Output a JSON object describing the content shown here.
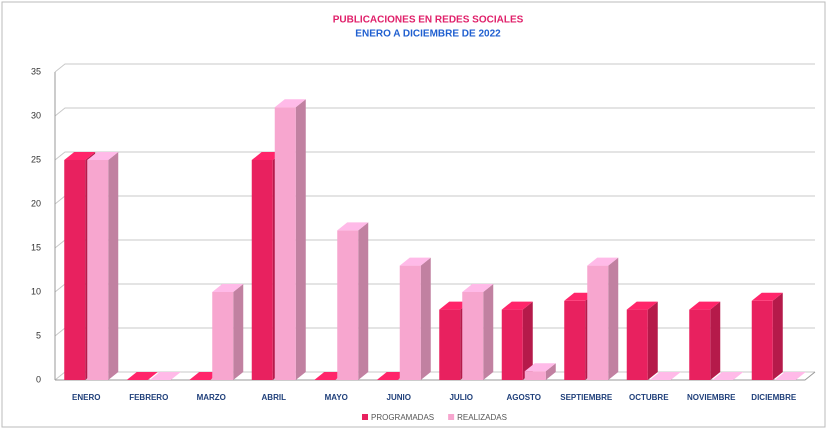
{
  "chart_data": {
    "type": "bar3d",
    "title": "PUBLICACIONES EN REDES SOCIALES",
    "subtitle": "ENERO A DICIEMBRE DE 2022",
    "categories": [
      "ENERO",
      "FEBRERO",
      "MARZO",
      "ABRIL",
      "MAYO",
      "JUNIO",
      "JULIO",
      "AGOSTO",
      "SEPTIEMBRE",
      "OCTUBRE",
      "NOVIEMBRE",
      "DICIEMBRE"
    ],
    "series": [
      {
        "name": "PROGRAMADAS",
        "color": "#e8215f",
        "values": [
          25,
          0,
          0,
          25,
          0,
          0,
          8,
          8,
          9,
          8,
          8,
          9
        ]
      },
      {
        "name": "REALIZADAS",
        "color": "#f7a6cf",
        "values": [
          25,
          0,
          10,
          31,
          17,
          13,
          10,
          1,
          13,
          0,
          0,
          0
        ]
      }
    ],
    "ylim": [
      0,
      35
    ],
    "yticks": [
      0,
      5,
      10,
      15,
      20,
      25,
      30,
      35
    ],
    "grid": true,
    "legend": "bottom"
  }
}
